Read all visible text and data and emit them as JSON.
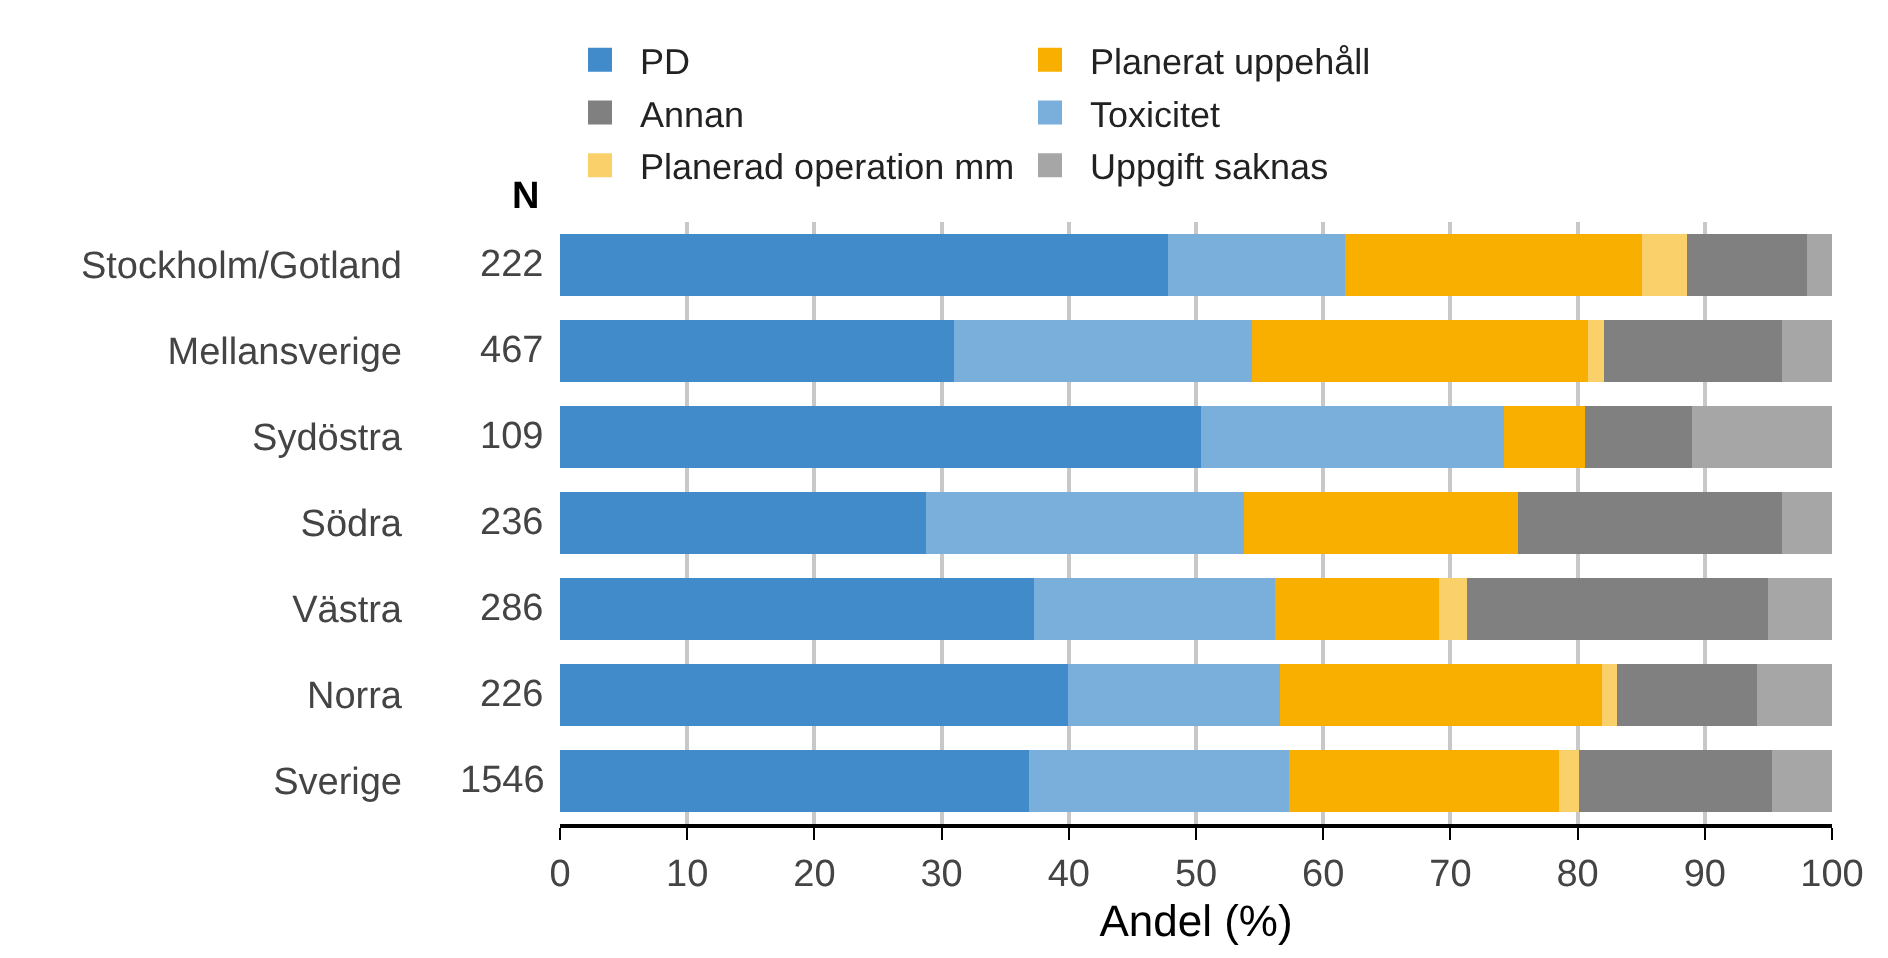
{
  "chart_data": {
    "type": "bar",
    "orientation": "horizontal",
    "stacked": true,
    "xlabel": "Andel (%)",
    "categories": [
      "Stockholm/Gotland",
      "Mellansverige",
      "Sydöstra",
      "Södra",
      "Västra",
      "Norra",
      "Sverige"
    ],
    "series": [
      {
        "name": "PD",
        "color": "#428bca",
        "values": [
          47.8,
          31.0,
          50.4,
          28.8,
          37.3,
          39.9,
          36.9
        ]
      },
      {
        "name": "Toxicitet",
        "color": "#7aaedb",
        "values": [
          13.9,
          23.4,
          23.8,
          25.0,
          18.9,
          16.7,
          20.4
        ]
      },
      {
        "name": "Planerat uppehåll",
        "color": "#f8af00",
        "values": [
          23.4,
          26.4,
          6.4,
          21.5,
          12.9,
          25.3,
          21.2
        ]
      },
      {
        "name": "Planerad operation mm",
        "color": "#fad06b",
        "values": [
          3.5,
          1.3,
          0,
          0,
          2.2,
          1.2,
          1.6
        ]
      },
      {
        "name": "Annan",
        "color": "#808080",
        "values": [
          9.4,
          14.0,
          8.4,
          20.8,
          23.7,
          11.0,
          15.2
        ]
      },
      {
        "name": "Uppgift saknas",
        "color": "#a6a6a6",
        "values": [
          2.0,
          3.9,
          11.0,
          3.9,
          5.0,
          5.9,
          4.7
        ]
      }
    ],
    "annotations": [
      "N",
      "222",
      "467",
      "109",
      "236",
      "286",
      "226",
      "1546"
    ],
    "xlim": [
      0,
      100
    ],
    "xticks": [
      0,
      10,
      20,
      30,
      40,
      50,
      60,
      70,
      80,
      90,
      100
    ],
    "grid": "x",
    "legend": "top"
  }
}
